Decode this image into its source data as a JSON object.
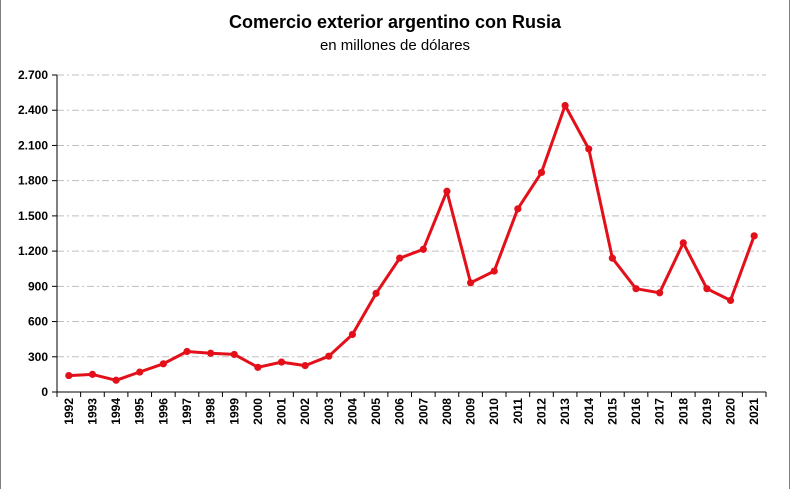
{
  "chart_data": {
    "type": "line",
    "title": "Comercio exterior argentino con Rusia",
    "subtitle": "en millones de dólares",
    "xlabel": "",
    "ylabel": "",
    "ylim": [
      0,
      2700
    ],
    "yticks": [
      0,
      300,
      600,
      900,
      1200,
      1500,
      1800,
      2100,
      2400,
      2700
    ],
    "ytick_labels": [
      "0",
      "300",
      "600",
      "900",
      "1.200",
      "1.500",
      "1.800",
      "2.100",
      "2.400",
      "2.700"
    ],
    "grid": true,
    "legend": "none",
    "line_color": "#e3101a",
    "grid_color": "#bfbfbf",
    "categories": [
      "1992",
      "1993",
      "1994",
      "1995",
      "1996",
      "1997",
      "1998",
      "1999",
      "2000",
      "2001",
      "2002",
      "2003",
      "2004",
      "2005",
      "2006",
      "2007",
      "2008",
      "2009",
      "2010",
      "2011",
      "2012",
      "2013",
      "2014",
      "2015",
      "2016",
      "2017",
      "2018",
      "2019",
      "2020",
      "2021"
    ],
    "series": [
      {
        "name": "Comercio exterior",
        "values": [
          140,
          150,
          100,
          170,
          240,
          345,
          330,
          320,
          210,
          255,
          225,
          305,
          490,
          840,
          1140,
          1215,
          1710,
          930,
          1030,
          1560,
          1870,
          2440,
          2070,
          1140,
          880,
          845,
          1270,
          880,
          780,
          1330
        ]
      }
    ]
  }
}
